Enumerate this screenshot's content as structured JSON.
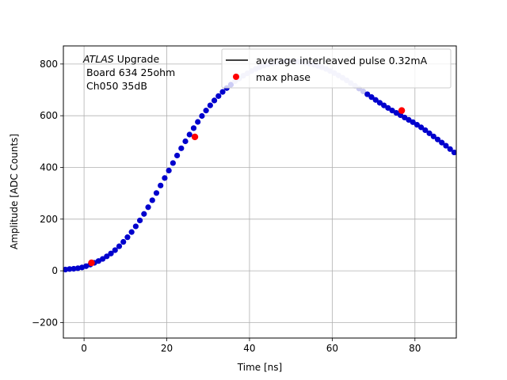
{
  "chart_data": {
    "type": "scatter",
    "xlabel": "Time [ns]",
    "ylabel": "Amplitude [ADC Counts]",
    "xlim": [
      -5,
      90
    ],
    "ylim": [
      -260,
      870
    ],
    "xticks": [
      0,
      20,
      40,
      60,
      80
    ],
    "yticks": [
      -200,
      0,
      200,
      400,
      600,
      800
    ],
    "xtick_labels": [
      "0",
      "20",
      "40",
      "60",
      "80"
    ],
    "ytick_labels": [
      "−200",
      "0",
      "200",
      "400",
      "600",
      "800"
    ],
    "grid": true,
    "annotation": {
      "title_italic": "ATLAS",
      "title_rest": " Upgrade",
      "line2": "Board 634 25ohm",
      "line3": "Ch050 35dB"
    },
    "legend": {
      "placement": "top-right",
      "entries": [
        {
          "label": "average interleaved pulse 0.32mA",
          "marker": "line",
          "color": "#000000"
        },
        {
          "label": "max phase",
          "marker": "dot",
          "color": "#ff0000"
        }
      ]
    },
    "series": [
      {
        "name": "average interleaved pulse 0.32mA",
        "color": "#0000cd",
        "points": [
          [
            -4.5,
            5
          ],
          [
            -3.5,
            7
          ],
          [
            -2.5,
            8
          ],
          [
            -1.5,
            10
          ],
          [
            -0.5,
            13
          ],
          [
            0.5,
            18
          ],
          [
            1.5,
            24
          ],
          [
            2.5,
            31
          ],
          [
            3.5,
            38
          ],
          [
            4.5,
            46
          ],
          [
            5.5,
            56
          ],
          [
            6.5,
            67
          ],
          [
            7.5,
            80
          ],
          [
            8.5,
            95
          ],
          [
            9.5,
            112
          ],
          [
            10.5,
            130
          ],
          [
            11.5,
            150
          ],
          [
            12.5,
            172
          ],
          [
            13.5,
            195
          ],
          [
            14.5,
            220
          ],
          [
            15.5,
            246
          ],
          [
            16.5,
            273
          ],
          [
            17.5,
            301
          ],
          [
            18.5,
            330
          ],
          [
            19.5,
            359
          ],
          [
            20.5,
            388
          ],
          [
            21.5,
            417
          ],
          [
            22.5,
            446
          ],
          [
            23.5,
            474
          ],
          [
            24.5,
            501
          ],
          [
            25.5,
            527
          ],
          [
            26.5,
            552
          ],
          [
            27.5,
            576
          ],
          [
            28.5,
            599
          ],
          [
            29.5,
            620
          ],
          [
            30.5,
            640
          ],
          [
            31.5,
            659
          ],
          [
            32.5,
            676
          ],
          [
            33.5,
            692
          ],
          [
            34.5,
            707
          ],
          [
            35.5,
            720
          ],
          [
            36.5,
            733
          ],
          [
            37.5,
            744
          ],
          [
            38.5,
            755
          ],
          [
            39.5,
            764
          ],
          [
            40.5,
            773
          ],
          [
            41.5,
            781
          ],
          [
            42.5,
            788
          ],
          [
            43.5,
            794
          ],
          [
            44.5,
            799
          ],
          [
            45.5,
            803
          ],
          [
            46.5,
            806
          ],
          [
            47.5,
            809
          ],
          [
            48.5,
            811
          ],
          [
            49.5,
            811
          ],
          [
            50.5,
            811
          ],
          [
            51.5,
            810
          ],
          [
            52.5,
            808
          ],
          [
            53.5,
            806
          ],
          [
            54.5,
            802
          ],
          [
            55.5,
            798
          ],
          [
            56.5,
            793
          ],
          [
            57.5,
            787
          ],
          [
            58.5,
            781
          ],
          [
            59.5,
            773
          ],
          [
            60.5,
            765
          ],
          [
            61.5,
            756
          ],
          [
            62.5,
            747
          ],
          [
            63.5,
            737
          ],
          [
            64.5,
            726
          ],
          [
            65.5,
            716
          ],
          [
            66.5,
            705
          ],
          [
            67.5,
            694
          ],
          [
            68.5,
            683
          ],
          [
            69.5,
            672
          ],
          [
            70.5,
            661
          ],
          [
            71.5,
            650
          ],
          [
            72.5,
            640
          ],
          [
            73.5,
            630
          ],
          [
            74.5,
            620
          ],
          [
            75.5,
            611
          ],
          [
            76.5,
            602
          ],
          [
            77.5,
            593
          ],
          [
            78.5,
            584
          ],
          [
            79.5,
            575
          ],
          [
            80.5,
            565
          ],
          [
            81.5,
            555
          ],
          [
            82.5,
            544
          ],
          [
            83.5,
            532
          ],
          [
            84.5,
            520
          ],
          [
            85.5,
            508
          ],
          [
            86.5,
            496
          ],
          [
            87.5,
            484
          ],
          [
            88.5,
            471
          ],
          [
            89.5,
            458
          ]
        ]
      },
      {
        "name": "max phase",
        "color": "#ff0000",
        "points": [
          [
            1.8,
            31
          ],
          [
            26.8,
            518
          ],
          [
            76.8,
            620
          ]
        ]
      }
    ]
  }
}
